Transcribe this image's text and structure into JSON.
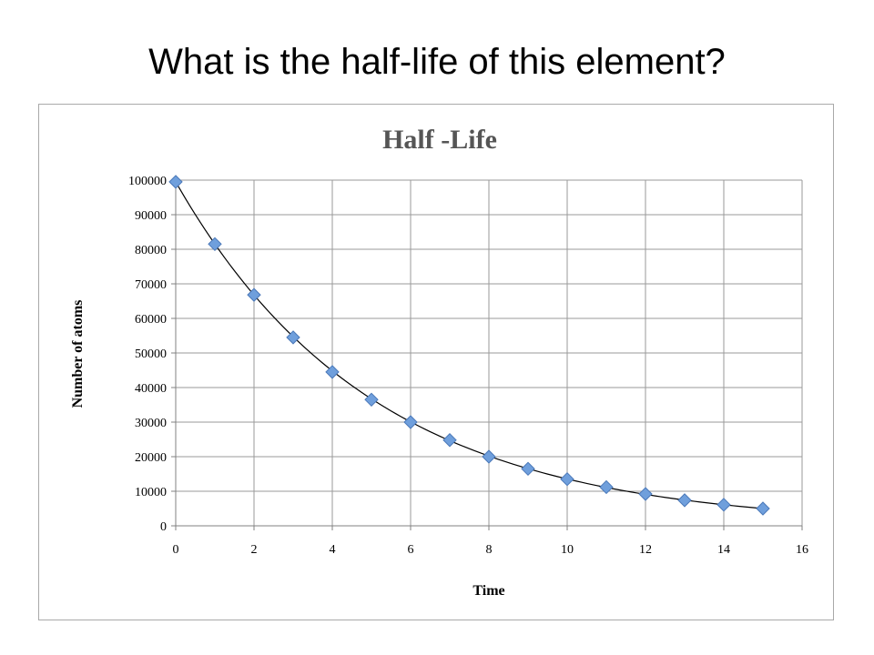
{
  "slide": {
    "title": "What is the half-life of this element?"
  },
  "chart_data": {
    "type": "scatter",
    "title": "Half -Life",
    "xlabel": "Time",
    "ylabel": "Number of atoms",
    "xlim": [
      0,
      16
    ],
    "ylim": [
      0,
      100000
    ],
    "xticks": [
      0,
      2,
      4,
      6,
      8,
      10,
      12,
      14,
      16
    ],
    "yticks": [
      0,
      10000,
      20000,
      30000,
      40000,
      50000,
      60000,
      70000,
      80000,
      90000,
      100000
    ],
    "grid": true,
    "trendline": "exponential",
    "marker_color": "#6f9fdc",
    "line_color": "#000000",
    "series": [
      {
        "x": [
          0,
          1,
          2,
          3,
          4,
          5,
          6,
          7,
          8,
          9,
          10,
          11,
          12,
          13,
          14,
          15
        ],
        "y": [
          99500,
          81500,
          66800,
          54500,
          44500,
          36500,
          30000,
          24800,
          20000,
          16500,
          13500,
          11200,
          9200,
          7400,
          6100,
          5000
        ]
      }
    ]
  }
}
